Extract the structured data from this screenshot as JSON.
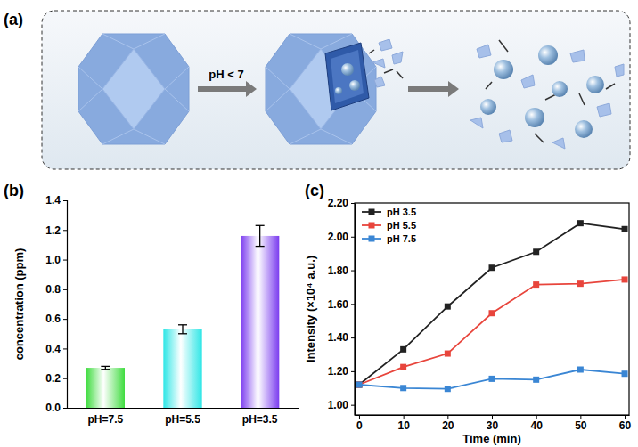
{
  "diagram": {
    "panel_label": "(a)",
    "arrow_label": "pH < 7"
  },
  "chart_data": [
    {
      "type": "bar",
      "panel_label": "(b)",
      "y_label": "concentration (ppm)",
      "categories": [
        "pH=7.5",
        "pH=5.5",
        "pH=3.5"
      ],
      "values": [
        0.27,
        0.53,
        1.16
      ],
      "errors": [
        0.01,
        0.03,
        0.07
      ],
      "colors": [
        "#3fdc3f",
        "#2ee6e6",
        "#7b3cef"
      ],
      "ylim": [
        0,
        1.4
      ],
      "yticks": [
        {
          "value": 0,
          "label": "0.0"
        },
        {
          "value": 0.2,
          "label": "0.2"
        },
        {
          "value": 0.4,
          "label": "0.4"
        },
        {
          "value": 0.6,
          "label": "0.6"
        },
        {
          "value": 0.8,
          "label": "0.8"
        },
        {
          "value": 1,
          "label": "1.0"
        },
        {
          "value": 1.2,
          "label": "1.2"
        },
        {
          "value": 1.4,
          "label": "1.4"
        }
      ]
    },
    {
      "type": "line",
      "panel_label": "(c)",
      "x_label": "Time (min)",
      "y_label": "Intensity (×10⁴ a.u.)",
      "x": [
        0,
        10,
        20,
        30,
        40,
        50,
        60
      ],
      "xlim": [
        -1,
        61
      ],
      "xticks": [
        0,
        10,
        20,
        30,
        40,
        50,
        60
      ],
      "ylim": [
        0.94,
        2.2
      ],
      "yticks": [
        {
          "value": 1,
          "label": "1.00"
        },
        {
          "value": 1.2,
          "label": "1.20"
        },
        {
          "value": 1.4,
          "label": "1.40"
        },
        {
          "value": 1.6,
          "label": "1.60"
        },
        {
          "value": 1.8,
          "label": "1.80"
        },
        {
          "value": 2,
          "label": "2.00"
        },
        {
          "value": 2.2,
          "label": "2.20"
        }
      ],
      "legend": "upper left",
      "series": [
        {
          "name": "pH 3.5",
          "color": "#222222",
          "marker": "square",
          "values": [
            1.12,
            1.33,
            1.585,
            1.815,
            1.91,
            2.08,
            2.045
          ]
        },
        {
          "name": "pH 5.5",
          "color": "#e8453c",
          "marker": "square",
          "values": [
            1.12,
            1.225,
            1.305,
            1.545,
            1.715,
            1.72,
            1.745
          ]
        },
        {
          "name": "pH 7.5",
          "color": "#3a86d4",
          "marker": "square",
          "values": [
            1.12,
            1.1,
            1.095,
            1.155,
            1.15,
            1.21,
            1.185
          ]
        }
      ]
    }
  ]
}
